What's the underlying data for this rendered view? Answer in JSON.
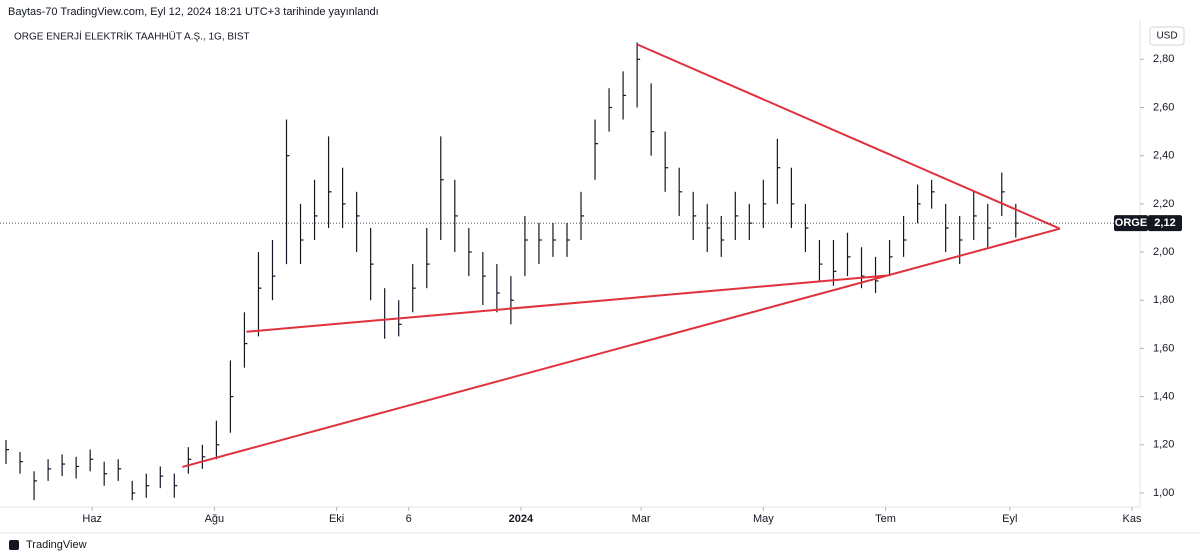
{
  "header": {
    "title": "Baytas-70 TradingView.com, Eyl 12, 2024 18:21 UTC+3 tarihinde yayınlandı"
  },
  "footer": {
    "brand": "TradingView"
  },
  "chart_data": {
    "type": "ohlc",
    "title": "ORGE ENERJİ ELEKTRİK TAAHHÜT A.Ş., 1G, BIST",
    "currency": "USD",
    "color": "#131722",
    "x": [
      -43,
      -36,
      -29,
      -22,
      -15,
      -8,
      -1,
      6,
      13,
      20,
      27,
      34,
      41,
      48,
      55,
      62,
      69,
      76,
      83,
      90,
      97,
      104,
      111,
      118,
      125,
      132,
      139,
      146,
      153,
      160,
      167,
      174,
      181,
      188,
      195,
      202,
      209,
      216,
      223,
      230,
      237,
      244,
      251,
      258,
      265,
      272,
      279,
      286,
      293,
      300,
      307,
      314,
      321,
      328,
      335,
      342,
      349,
      356,
      363,
      370,
      377,
      384,
      391,
      398,
      405,
      412,
      419,
      426,
      433,
      440,
      447,
      454,
      461
    ],
    "high": [
      1.22,
      1.17,
      1.09,
      1.14,
      1.16,
      1.15,
      1.18,
      1.13,
      1.14,
      1.05,
      1.08,
      1.11,
      1.08,
      1.19,
      1.2,
      1.3,
      1.55,
      1.75,
      2.0,
      2.05,
      2.55,
      2.2,
      2.3,
      2.48,
      2.35,
      2.25,
      2.1,
      1.85,
      1.8,
      1.95,
      2.1,
      2.48,
      2.3,
      2.1,
      2.0,
      1.95,
      1.9,
      2.15,
      2.12,
      2.12,
      2.12,
      2.25,
      2.55,
      2.68,
      2.75,
      2.87,
      2.7,
      2.5,
      2.35,
      2.25,
      2.2,
      2.15,
      2.25,
      2.2,
      2.3,
      2.47,
      2.35,
      2.2,
      2.05,
      2.05,
      2.08,
      2.02,
      1.98,
      2.05,
      2.15,
      2.28,
      2.3,
      2.2,
      2.15,
      2.25,
      2.2,
      2.33,
      2.2
    ],
    "low": [
      1.12,
      1.08,
      0.97,
      1.05,
      1.07,
      1.06,
      1.09,
      1.03,
      1.05,
      0.97,
      0.98,
      1.02,
      0.98,
      1.08,
      1.1,
      1.14,
      1.25,
      1.52,
      1.65,
      1.8,
      1.95,
      1.95,
      2.05,
      2.1,
      2.1,
      2.0,
      1.8,
      1.64,
      1.65,
      1.75,
      1.85,
      2.05,
      2.0,
      1.9,
      1.78,
      1.75,
      1.7,
      1.9,
      1.95,
      1.98,
      1.98,
      2.05,
      2.3,
      2.5,
      2.55,
      2.6,
      2.4,
      2.25,
      2.15,
      2.05,
      2.0,
      1.98,
      2.05,
      2.05,
      2.1,
      2.2,
      2.1,
      2.0,
      1.88,
      1.86,
      1.9,
      1.85,
      1.83,
      1.9,
      1.98,
      2.12,
      2.18,
      2.0,
      1.95,
      2.05,
      2.02,
      2.15,
      2.06
    ],
    "close": [
      1.18,
      1.13,
      1.05,
      1.1,
      1.12,
      1.11,
      1.14,
      1.08,
      1.1,
      1.0,
      1.03,
      1.07,
      1.03,
      1.14,
      1.15,
      1.2,
      1.4,
      1.62,
      1.85,
      1.9,
      2.4,
      2.05,
      2.15,
      2.25,
      2.2,
      2.15,
      1.95,
      1.72,
      1.7,
      1.85,
      1.95,
      2.3,
      2.15,
      2.0,
      1.9,
      1.83,
      1.8,
      2.05,
      2.05,
      2.05,
      2.05,
      2.15,
      2.45,
      2.6,
      2.65,
      2.8,
      2.5,
      2.35,
      2.25,
      2.15,
      2.1,
      2.05,
      2.15,
      2.12,
      2.2,
      2.35,
      2.2,
      2.1,
      1.95,
      1.92,
      1.98,
      1.9,
      1.88,
      1.98,
      2.05,
      2.2,
      2.25,
      2.1,
      2.05,
      2.15,
      2.1,
      2.25,
      2.12
    ],
    "last_price": {
      "symbol": "ORGE",
      "value": 2.12,
      "value_label": "2,12"
    },
    "trendline_color": "#e0323c",
    "trendlines": [
      {
        "x": [
          45,
          483
        ],
        "y": [
          1.108,
          2.097
        ]
      },
      {
        "x": [
          77,
          396
        ],
        "y": [
          1.669,
          1.902
        ]
      },
      {
        "x": [
          272,
          483
        ],
        "y": [
          2.862,
          2.097
        ]
      }
    ],
    "xlim": [
      -46,
      523
    ],
    "xticks": [
      {
        "value": 0,
        "label": "Haz"
      },
      {
        "value": 61,
        "label": "Ağu"
      },
      {
        "value": 122,
        "label": "Eki"
      },
      {
        "value": 158,
        "label": "6"
      },
      {
        "value": 214,
        "label": "2024"
      },
      {
        "value": 274,
        "label": "Mar"
      },
      {
        "value": 335,
        "label": "May"
      },
      {
        "value": 396,
        "label": "Tem"
      },
      {
        "value": 458,
        "label": "Eyl"
      },
      {
        "value": 519,
        "label": "Kas"
      }
    ],
    "ylim": [
      0.95,
      2.93
    ],
    "yticks": [
      {
        "value": 1,
        "label": "1,00"
      },
      {
        "value": 1.2,
        "label": "1,20"
      },
      {
        "value": 1.4,
        "label": "1,40"
      },
      {
        "value": 1.6,
        "label": "1,60"
      },
      {
        "value": 1.8,
        "label": "1,80"
      },
      {
        "value": 2,
        "label": "2,00"
      },
      {
        "value": 2.2,
        "label": "2,20"
      },
      {
        "value": 2.4,
        "label": "2,40"
      },
      {
        "value": 2.6,
        "label": "2,60"
      },
      {
        "value": 2.8,
        "label": "2,80"
      }
    ]
  }
}
